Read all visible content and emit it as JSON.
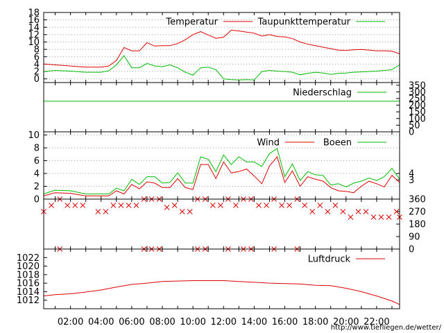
{
  "footer": {
    "url": "http://www.tiefliegen.de/wetter/"
  },
  "x_ticks": [
    "02:00",
    "04:00",
    "06:00",
    "08:00",
    "10:00",
    "12:00",
    "14:00",
    "16:00",
    "18:00",
    "20:00",
    "22:00"
  ],
  "colors": {
    "red": "#dd0000",
    "green": "#00bb00",
    "grid": "#999999"
  },
  "chart_data": [
    {
      "type": "line",
      "name": "temperature",
      "x_range": [
        0.25,
        23.5
      ],
      "ylim": [
        -1,
        18
      ],
      "yticks": [
        0,
        2,
        4,
        6,
        8,
        10,
        12,
        14,
        16,
        18
      ],
      "grid": true,
      "legend_position": "top-right",
      "x": [
        0.25,
        1,
        2,
        3,
        3.5,
        4,
        4.5,
        5,
        5.5,
        6,
        6.5,
        7,
        7.5,
        8,
        8.5,
        9,
        9.5,
        10,
        10.5,
        11,
        11.5,
        12,
        12.5,
        13,
        13.5,
        14,
        14.5,
        15,
        15.5,
        16,
        16.5,
        17,
        17.5,
        18,
        18.5,
        19,
        19.5,
        20,
        20.5,
        21,
        21.5,
        22,
        22.5,
        23,
        23.5
      ],
      "series": [
        {
          "name": "Temperatur",
          "color": "#dd0000",
          "values": [
            4.0,
            3.8,
            3.5,
            3.2,
            3.2,
            3.2,
            3.5,
            5.0,
            8.5,
            7.6,
            7.6,
            9.8,
            8.9,
            9.0,
            9.0,
            9.6,
            10.6,
            12.0,
            12.8,
            11.9,
            11.0,
            11.3,
            13.2,
            13.0,
            12.7,
            12.4,
            11.6,
            12.0,
            11.5,
            11.4,
            10.9,
            10.0,
            9.4,
            9.0,
            8.6,
            8.2,
            7.8,
            7.7,
            7.9,
            8.0,
            7.8,
            7.6,
            7.6,
            7.5,
            6.8
          ]
        },
        {
          "name": "Taupunkttemperatur",
          "color": "#00bb00",
          "values": [
            2.0,
            2.3,
            2.1,
            1.8,
            1.8,
            1.8,
            2.2,
            3.8,
            6.3,
            3.0,
            3.0,
            4.2,
            3.5,
            3.3,
            3.8,
            3.0,
            1.8,
            1.0,
            3.0,
            3.2,
            2.5,
            0,
            -0.2,
            -0.3,
            -0.2,
            -0.3,
            2.0,
            2.3,
            2.1,
            2.0,
            1.8,
            1.1,
            1.5,
            1.8,
            1.6,
            1.2,
            1.5,
            1.6,
            1.8,
            1.9,
            2.0,
            2.1,
            2.3,
            2.5,
            3.8
          ]
        }
      ]
    },
    {
      "type": "line",
      "name": "precipitation",
      "x_range": [
        0.25,
        23.5
      ],
      "ylim": [
        0,
        370
      ],
      "yticks": [
        0,
        50,
        100,
        150,
        200,
        250,
        300,
        350
      ],
      "legend_position": "top-right",
      "x": [
        0.25,
        23.5
      ],
      "series": [
        {
          "name": "Niederschlag",
          "color": "#00bb00",
          "values": [
            230,
            230
          ]
        }
      ]
    },
    {
      "type": "line",
      "name": "wind",
      "x_range": [
        0.25,
        23.5
      ],
      "ylim": [
        0,
        10.5
      ],
      "yticks_left": [
        0,
        2,
        4,
        6,
        8,
        10
      ],
      "yticks_right": [
        3,
        4
      ],
      "grid": true,
      "legend_position": "top-right",
      "x": [
        0.25,
        1,
        2,
        3,
        3.5,
        4,
        4.5,
        5,
        5.5,
        6,
        6.5,
        7,
        7.5,
        8,
        8.5,
        9,
        9.5,
        10,
        10.5,
        11,
        11.5,
        12,
        12.5,
        13,
        13.5,
        14,
        14.5,
        15,
        15.5,
        16,
        16.5,
        17,
        17.5,
        18,
        18.5,
        19,
        19.5,
        20,
        20.5,
        21,
        21.5,
        22,
        22.5,
        23,
        23.5
      ],
      "series": [
        {
          "name": "Wind",
          "color": "#dd0000",
          "values": [
            0.5,
            1.0,
            0.9,
            0.5,
            0.5,
            0.5,
            0.5,
            1.3,
            0.8,
            2.3,
            1.6,
            2.7,
            2.5,
            1.8,
            1.8,
            3.2,
            1.8,
            1.5,
            5.4,
            5.4,
            3.2,
            5.8,
            4.1,
            4.3,
            4.7,
            3.6,
            2.4,
            5.2,
            6.6,
            2.6,
            4.4,
            2.0,
            3.5,
            3.1,
            2.8,
            1.8,
            1.3,
            1.2,
            1.0,
            2.0,
            2.8,
            2.4,
            1.9,
            3.7,
            2.6
          ]
        },
        {
          "name": "Boeen",
          "color": "#00bb00",
          "values": [
            0.8,
            1.4,
            1.3,
            0.8,
            0.8,
            0.8,
            0.8,
            1.7,
            1.3,
            3.1,
            2.3,
            3.5,
            3.5,
            2.5,
            2.6,
            4.1,
            2.5,
            2.5,
            6.6,
            6.2,
            4.3,
            6.9,
            5.4,
            6.6,
            5.8,
            5.8,
            5.1,
            7.1,
            7.9,
            3.5,
            5.5,
            2.9,
            4.3,
            3.8,
            3.7,
            2.2,
            2.4,
            1.9,
            2.5,
            2.8,
            3.3,
            2.9,
            3.5,
            4.8,
            3.1
          ]
        }
      ]
    },
    {
      "type": "scatter",
      "name": "wind-direction",
      "x_range": [
        0.25,
        23.5
      ],
      "ylim": [
        0,
        360
      ],
      "yticks": [
        0,
        90,
        180,
        270,
        360
      ],
      "points": [
        [
          0.25,
          270
        ],
        [
          0.75,
          315
        ],
        [
          1.3,
          360
        ],
        [
          1.3,
          0
        ],
        [
          1.8,
          315
        ],
        [
          2.3,
          315
        ],
        [
          2.8,
          315
        ],
        [
          3.8,
          270
        ],
        [
          4.3,
          270
        ],
        [
          4.8,
          315
        ],
        [
          5.3,
          315
        ],
        [
          5.8,
          315
        ],
        [
          6.3,
          315
        ],
        [
          6.8,
          360
        ],
        [
          6.8,
          0
        ],
        [
          7.3,
          360
        ],
        [
          7.3,
          0
        ],
        [
          7.8,
          360
        ],
        [
          7.8,
          0
        ],
        [
          8.3,
          300
        ],
        [
          8.8,
          315
        ],
        [
          9.3,
          270
        ],
        [
          9.8,
          270
        ],
        [
          10.3,
          360
        ],
        [
          10.3,
          0
        ],
        [
          10.8,
          360
        ],
        [
          10.8,
          0
        ],
        [
          11.3,
          315
        ],
        [
          11.8,
          315
        ],
        [
          12.3,
          360
        ],
        [
          12.3,
          0
        ],
        [
          12.8,
          315
        ],
        [
          13.3,
          360
        ],
        [
          13.3,
          0
        ],
        [
          13.8,
          360
        ],
        [
          13.8,
          0
        ],
        [
          14.3,
          315
        ],
        [
          14.8,
          315
        ],
        [
          15.3,
          360
        ],
        [
          15.3,
          0
        ],
        [
          15.8,
          315
        ],
        [
          16.3,
          315
        ],
        [
          16.8,
          360
        ],
        [
          16.8,
          0
        ],
        [
          17.3,
          315
        ],
        [
          17.8,
          270
        ],
        [
          18.3,
          315
        ],
        [
          18.8,
          270
        ],
        [
          19.3,
          315
        ],
        [
          19.8,
          270
        ],
        [
          20.3,
          230
        ],
        [
          20.8,
          270
        ],
        [
          21.3,
          270
        ],
        [
          21.8,
          230
        ],
        [
          22.3,
          230
        ],
        [
          22.8,
          230
        ],
        [
          23.3,
          270
        ],
        [
          23.5,
          230
        ]
      ]
    },
    {
      "type": "line",
      "name": "pressure",
      "x_range": [
        0.25,
        23.5
      ],
      "ylim": [
        1010,
        1024
      ],
      "yticks": [
        1012,
        1014,
        1016,
        1018,
        1020,
        1022
      ],
      "legend_position": "top-right",
      "x": [
        0.25,
        1,
        2,
        3,
        4,
        5,
        6,
        7,
        8,
        9,
        10,
        11,
        12,
        13,
        14,
        15,
        16,
        17,
        18,
        19,
        20,
        21,
        22,
        23,
        23.5
      ],
      "series": [
        {
          "name": "Luftdruck",
          "color": "#dd0000",
          "values": [
            1013.0,
            1013.3,
            1013.5,
            1013.9,
            1014.4,
            1015.1,
            1015.7,
            1016.0,
            1016.4,
            1016.5,
            1016.6,
            1016.6,
            1016.6,
            1016.4,
            1016.2,
            1016.0,
            1015.9,
            1015.8,
            1015.5,
            1015.4,
            1014.8,
            1014.0,
            1013.0,
            1011.8,
            1011.0
          ]
        }
      ]
    }
  ]
}
